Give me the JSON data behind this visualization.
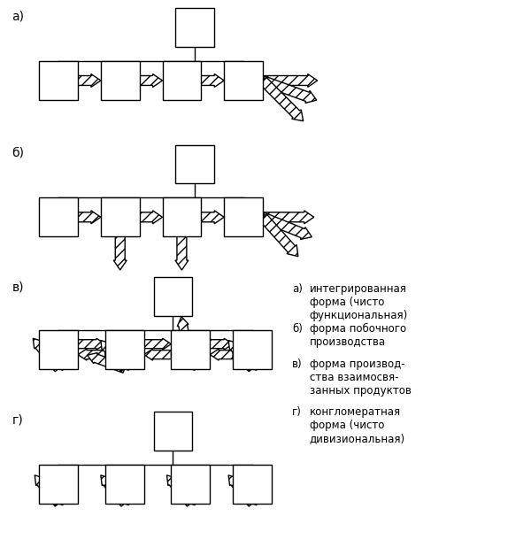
{
  "background_color": "#ffffff",
  "line_color": "#000000",
  "legend_items": [
    [
      "а)",
      "интегрированная\nформа (чисто\nфункциональная)"
    ],
    [
      "б)",
      "форма побочного\nпроизводства"
    ],
    [
      "в)",
      "форма производ-\nства взаимосвя-\nзанных продуктов"
    ],
    [
      "г)",
      "конгломератная\nформа (чисто\nдивизиональная)"
    ]
  ],
  "section_labels": [
    "а)",
    "б)",
    "в)",
    "г)"
  ],
  "section_label_fontsize": 10,
  "legend_fontsize": 8.5
}
